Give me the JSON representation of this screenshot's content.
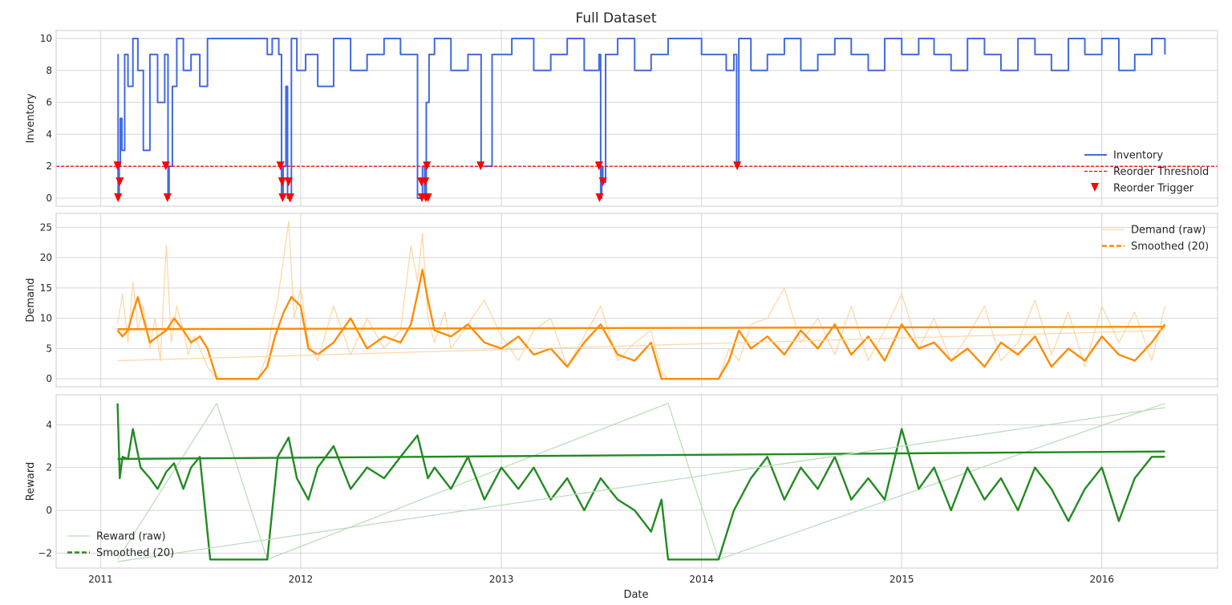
{
  "figure": {
    "title": "Full Dataset",
    "xlabel": "Date",
    "x_ticks": [
      "2011",
      "2012",
      "2013",
      "2014",
      "2015",
      "2016"
    ]
  },
  "colors": {
    "inventory": "#4169e1",
    "threshold": "#ff0000",
    "trigger": "#ff0000",
    "demand_raw": "#ffd5a0",
    "demand_smooth": "#ff8c00",
    "reward_raw": "#b7dcb7",
    "reward_smooth": "#228b22"
  },
  "chart_data": [
    {
      "type": "line",
      "ylabel": "Inventory",
      "xlim": [
        "2010-10-12",
        "2016-07-30"
      ],
      "ylim": [
        -0.5,
        10.5
      ],
      "y_ticks": [
        0,
        2,
        4,
        6,
        8,
        10
      ],
      "grid": true,
      "legend_position": "right",
      "legend": [
        "Inventory",
        "Reorder Threshold",
        "Reorder Trigger"
      ],
      "series": [
        {
          "name": "Inventory",
          "x": [
            "2011-02-01",
            "2011-02-02",
            "2011-02-04",
            "2011-02-06",
            "2011-02-09",
            "2011-02-14",
            "2011-02-20",
            "2011-03-01",
            "2011-03-10",
            "2011-03-20",
            "2011-04-01",
            "2011-04-15",
            "2011-04-28",
            "2011-05-04",
            "2011-05-06",
            "2011-05-12",
            "2011-05-20",
            "2011-06-01",
            "2011-06-15",
            "2011-07-01",
            "2011-07-15",
            "2011-08-01",
            "2011-11-01",
            "2011-11-10",
            "2011-11-22",
            "2011-11-27",
            "2011-11-30",
            "2011-12-05",
            "2011-12-08",
            "2011-12-15",
            "2011-12-25",
            "2012-01-10",
            "2012-02-01",
            "2012-03-01",
            "2012-04-01",
            "2012-05-01",
            "2012-06-01",
            "2012-07-01",
            "2012-08-01",
            "2012-08-10",
            "2012-08-14",
            "2012-08-17",
            "2012-08-22",
            "2012-09-01",
            "2012-10-01",
            "2012-11-01",
            "2012-11-25",
            "2012-12-15",
            "2013-01-20",
            "2013-03-01",
            "2013-04-01",
            "2013-05-01",
            "2013-06-01",
            "2013-06-28",
            "2013-07-01",
            "2013-07-03",
            "2013-07-05",
            "2013-07-10",
            "2013-08-01",
            "2013-09-01",
            "2013-10-01",
            "2013-11-01",
            "2014-01-01",
            "2014-02-01",
            "2014-02-15",
            "2014-03-01",
            "2014-03-06",
            "2014-03-10",
            "2014-04-01",
            "2014-05-01",
            "2014-06-01",
            "2014-07-01",
            "2014-08-01",
            "2014-09-01",
            "2014-10-01",
            "2014-11-01",
            "2014-12-01",
            "2015-01-01",
            "2015-02-01",
            "2015-03-01",
            "2015-04-01",
            "2015-05-01",
            "2015-06-01",
            "2015-07-01",
            "2015-08-01",
            "2015-09-01",
            "2015-10-01",
            "2015-11-01",
            "2015-12-01",
            "2016-01-01",
            "2016-02-01",
            "2016-03-01",
            "2016-04-01",
            "2016-04-25"
          ],
          "values": [
            9,
            0,
            2,
            5,
            3,
            9,
            7,
            10,
            8,
            3,
            9,
            6,
            9,
            0,
            2,
            7,
            10,
            8,
            9,
            7,
            10,
            10,
            9,
            10,
            9,
            0,
            2,
            7,
            0,
            10,
            8,
            9,
            7,
            10,
            8,
            9,
            10,
            9,
            0,
            2,
            0,
            6,
            9,
            10,
            8,
            9,
            2,
            9,
            10,
            8,
            9,
            10,
            8,
            9,
            0,
            2,
            1,
            9,
            10,
            8,
            9,
            10,
            9,
            9,
            8,
            9,
            2,
            10,
            8,
            9,
            10,
            8,
            9,
            10,
            9,
            8,
            10,
            9,
            10,
            9,
            8,
            10,
            9,
            8,
            10,
            9,
            8,
            10,
            9,
            10,
            8,
            9,
            10,
            9
          ]
        },
        {
          "name": "Reorder Threshold",
          "x": [
            "2010-10-12",
            "2016-07-30"
          ],
          "values": [
            2,
            2
          ]
        },
        {
          "name": "Reorder Trigger",
          "type": "scatter",
          "x": [
            "2011-02-01",
            "2011-02-02",
            "2011-02-05",
            "2011-04-30",
            "2011-05-03",
            "2011-11-25",
            "2011-11-28",
            "2011-11-29",
            "2011-12-10",
            "2011-12-12",
            "2011-12-13",
            "2012-08-08",
            "2012-08-09",
            "2012-08-15",
            "2012-08-16",
            "2012-08-18",
            "2012-08-20",
            "2012-11-24",
            "2013-06-28",
            "2013-06-29",
            "2013-07-05",
            "2014-03-07"
          ],
          "values": [
            2,
            0,
            1,
            2,
            0,
            2,
            1,
            0,
            1,
            0,
            0,
            1,
            0,
            1,
            0,
            2,
            0,
            2,
            2,
            0,
            1,
            2
          ]
        }
      ]
    },
    {
      "type": "line",
      "ylabel": "Demand",
      "xlim": [
        "2010-10-12",
        "2016-07-30"
      ],
      "ylim": [
        -1.3,
        27.3
      ],
      "y_ticks": [
        0,
        5,
        10,
        15,
        20,
        25
      ],
      "grid": true,
      "legend_position": "top-right",
      "legend": [
        "Demand (raw)",
        "Smoothed (20)"
      ],
      "series": [
        {
          "name": "Demand (raw)",
          "x": [
            "2011-02-01",
            "2011-02-10",
            "2011-02-20",
            "2011-03-01",
            "2011-03-10",
            "2011-03-20",
            "2011-04-01",
            "2011-04-10",
            "2011-04-20",
            "2011-05-01",
            "2011-05-10",
            "2011-05-20",
            "2011-06-01",
            "2011-06-10",
            "2011-06-20",
            "2011-07-01",
            "2011-07-15",
            "2011-08-01",
            "2011-10-15",
            "2011-11-01",
            "2011-11-10",
            "2011-11-20",
            "2011-12-01",
            "2011-12-10",
            "2011-12-20",
            "2012-01-01",
            "2012-01-15",
            "2012-02-01",
            "2012-03-01",
            "2012-04-01",
            "2012-05-01",
            "2012-06-01",
            "2012-07-01",
            "2012-07-20",
            "2012-08-01",
            "2012-08-10",
            "2012-08-20",
            "2012-09-01",
            "2012-09-20",
            "2012-10-01",
            "2012-11-01",
            "2012-12-01",
            "2013-01-01",
            "2013-02-01",
            "2013-03-01",
            "2013-04-01",
            "2013-05-01",
            "2013-06-01",
            "2013-07-01",
            "2013-08-01",
            "2013-09-01",
            "2013-10-01",
            "2013-10-20",
            "2013-11-01",
            "2014-02-01",
            "2014-02-20",
            "2014-03-10",
            "2014-04-01",
            "2014-05-01",
            "2014-06-01",
            "2014-07-01",
            "2014-08-01",
            "2014-09-01",
            "2014-10-01",
            "2014-11-01",
            "2014-12-01",
            "2015-01-01",
            "2015-02-01",
            "2015-03-01",
            "2015-04-01",
            "2015-05-01",
            "2015-06-01",
            "2015-07-01",
            "2015-08-01",
            "2015-09-01",
            "2015-10-01",
            "2015-11-01",
            "2015-12-01",
            "2016-01-01",
            "2016-02-01",
            "2016-03-01",
            "2016-04-01",
            "2016-04-25"
          ],
          "values": [
            9,
            14,
            6,
            16,
            8,
            12,
            5,
            10,
            3,
            22,
            6,
            12,
            8,
            4,
            7,
            5,
            2,
            0,
            0,
            4,
            9,
            13,
            20,
            26,
            10,
            15,
            6,
            3,
            12,
            4,
            10,
            5,
            8,
            22,
            16,
            24,
            10,
            6,
            11,
            5,
            9,
            13,
            7,
            3,
            8,
            10,
            2,
            7,
            12,
            3,
            6,
            8,
            1,
            0,
            0,
            5,
            3,
            9,
            10,
            15,
            6,
            10,
            4,
            12,
            3,
            8,
            14,
            5,
            10,
            3,
            7,
            12,
            3,
            6,
            13,
            4,
            11,
            2,
            12,
            6,
            11,
            3,
            12
          ]
        },
        {
          "name": "Smoothed (20)",
          "x": [
            "2011-02-01",
            "2011-02-10",
            "2011-02-20",
            "2011-03-01",
            "2011-03-10",
            "2011-03-20",
            "2011-04-01",
            "2011-04-15",
            "2011-05-01",
            "2011-05-15",
            "2011-06-01",
            "2011-06-15",
            "2011-07-01",
            "2011-07-15",
            "2011-08-01",
            "2011-10-15",
            "2011-11-01",
            "2011-11-15",
            "2011-12-01",
            "2011-12-15",
            "2012-01-01",
            "2012-01-15",
            "2012-02-01",
            "2012-03-01",
            "2012-04-01",
            "2012-05-01",
            "2012-06-01",
            "2012-07-01",
            "2012-07-20",
            "2012-08-01",
            "2012-08-10",
            "2012-08-20",
            "2012-09-01",
            "2012-10-01",
            "2012-11-01",
            "2012-12-01",
            "2013-01-01",
            "2013-02-01",
            "2013-03-01",
            "2013-04-01",
            "2013-05-01",
            "2013-06-01",
            "2013-07-01",
            "2013-08-01",
            "2013-09-01",
            "2013-10-01",
            "2013-10-20",
            "2013-11-01",
            "2014-02-01",
            "2014-02-20",
            "2014-03-10",
            "2014-04-01",
            "2014-05-01",
            "2014-06-01",
            "2014-07-01",
            "2014-08-01",
            "2014-09-01",
            "2014-10-01",
            "2014-11-01",
            "2014-12-01",
            "2015-01-01",
            "2015-02-01",
            "2015-03-01",
            "2015-04-01",
            "2015-05-01",
            "2015-06-01",
            "2015-07-01",
            "2015-08-01",
            "2015-09-01",
            "2015-10-01",
            "2015-11-01",
            "2015-12-01",
            "2016-01-01",
            "2016-02-01",
            "2016-03-01",
            "2016-04-01",
            "2016-04-25"
          ],
          "values": [
            8,
            7,
            8,
            11,
            13.5,
            10,
            6,
            7,
            8,
            10,
            8,
            6,
            7,
            5,
            0,
            0,
            2,
            7,
            11,
            13.5,
            12,
            5,
            4,
            6,
            10,
            5,
            7,
            6,
            9,
            14,
            18,
            13,
            8,
            7,
            9,
            6,
            5,
            7,
            4,
            5,
            2,
            6,
            9,
            4,
            3,
            6,
            0,
            0,
            0,
            3,
            8,
            5,
            7,
            4,
            8,
            5,
            9,
            4,
            7,
            3,
            9,
            5,
            6,
            3,
            5,
            2,
            6,
            4,
            7,
            2,
            5,
            3,
            7,
            4,
            3,
            6,
            9
          ]
        },
        {
          "name": "Smoothed (20)",
          "x": [
            "2011-02-01",
            "2016-04-25"
          ],
          "values": [
            8.2,
            8.6
          ]
        },
        {
          "name": "Demand (raw)",
          "x": [
            "2011-02-01",
            "2016-04-25"
          ],
          "values": [
            3,
            8
          ]
        }
      ]
    },
    {
      "type": "line",
      "ylabel": "Reward",
      "xlim": [
        "2010-10-12",
        "2016-07-30"
      ],
      "ylim": [
        -2.7,
        5.4
      ],
      "y_ticks": [
        -2,
        0,
        2,
        4
      ],
      "grid": true,
      "legend_position": "bottom-left",
      "legend": [
        "Reward (raw)",
        "Smoothed (20)"
      ],
      "series": [
        {
          "name": "Reward (raw)",
          "x": [
            "2011-02-01",
            "2011-08-01",
            "2011-11-01",
            "2013-11-01",
            "2014-02-01",
            "2016-04-25"
          ],
          "values": [
            -2.3,
            5,
            -2.3,
            5,
            -2.3,
            5
          ]
        },
        {
          "name": "Smoothed (20)",
          "x": [
            "2011-02-01",
            "2011-02-05",
            "2011-02-10",
            "2011-02-20",
            "2011-03-01",
            "2011-03-15",
            "2011-04-01",
            "2011-04-15",
            "2011-05-01",
            "2011-05-15",
            "2011-06-01",
            "2011-06-15",
            "2011-07-01",
            "2011-07-20",
            "2011-08-10",
            "2011-11-01",
            "2011-11-20",
            "2011-12-10",
            "2011-12-25",
            "2012-01-15",
            "2012-02-01",
            "2012-03-01",
            "2012-04-01",
            "2012-05-01",
            "2012-06-01",
            "2012-07-01",
            "2012-08-01",
            "2012-08-20",
            "2012-09-01",
            "2012-10-01",
            "2012-11-01",
            "2012-12-01",
            "2013-01-01",
            "2013-02-01",
            "2013-03-01",
            "2013-04-01",
            "2013-05-01",
            "2013-06-01",
            "2013-07-01",
            "2013-08-01",
            "2013-09-01",
            "2013-10-01",
            "2013-10-20",
            "2013-11-01",
            "2014-02-01",
            "2014-03-01",
            "2014-04-01",
            "2014-05-01",
            "2014-06-01",
            "2014-07-01",
            "2014-08-01",
            "2014-09-01",
            "2014-10-01",
            "2014-11-01",
            "2014-12-01",
            "2015-01-01",
            "2015-02-01",
            "2015-03-01",
            "2015-04-01",
            "2015-05-01",
            "2015-06-01",
            "2015-07-01",
            "2015-08-01",
            "2015-09-01",
            "2015-10-01",
            "2015-11-01",
            "2015-12-01",
            "2016-01-01",
            "2016-02-01",
            "2016-03-01",
            "2016-04-01",
            "2016-04-25"
          ],
          "values": [
            5,
            1.5,
            2.5,
            2.4,
            3.8,
            2,
            1.5,
            1,
            1.8,
            2.2,
            1,
            2,
            2.5,
            -2.3,
            -2.3,
            -2.3,
            2.5,
            3.4,
            1.5,
            0.5,
            2,
            3,
            1,
            2,
            1.5,
            2.5,
            3.5,
            1.5,
            2,
            1,
            2.5,
            0.5,
            2,
            1,
            2,
            0.5,
            1.5,
            0,
            1.5,
            0.5,
            0,
            -1,
            0.5,
            -2.3,
            -2.3,
            0,
            1.5,
            2.5,
            0.5,
            2,
            1,
            2.5,
            0.5,
            1.5,
            0.5,
            3.8,
            1,
            2,
            0,
            2,
            0.5,
            1.5,
            0,
            2,
            1,
            -0.5,
            1,
            2,
            -0.5,
            1.5,
            2.5,
            2.5
          ]
        },
        {
          "name": "Smoothed (20)",
          "x": [
            "2011-02-01",
            "2016-04-25"
          ],
          "values": [
            2.4,
            2.75
          ]
        },
        {
          "name": "Reward (raw)",
          "x": [
            "2011-02-01",
            "2016-04-25"
          ],
          "values": [
            -2.4,
            4.8
          ]
        }
      ]
    }
  ]
}
